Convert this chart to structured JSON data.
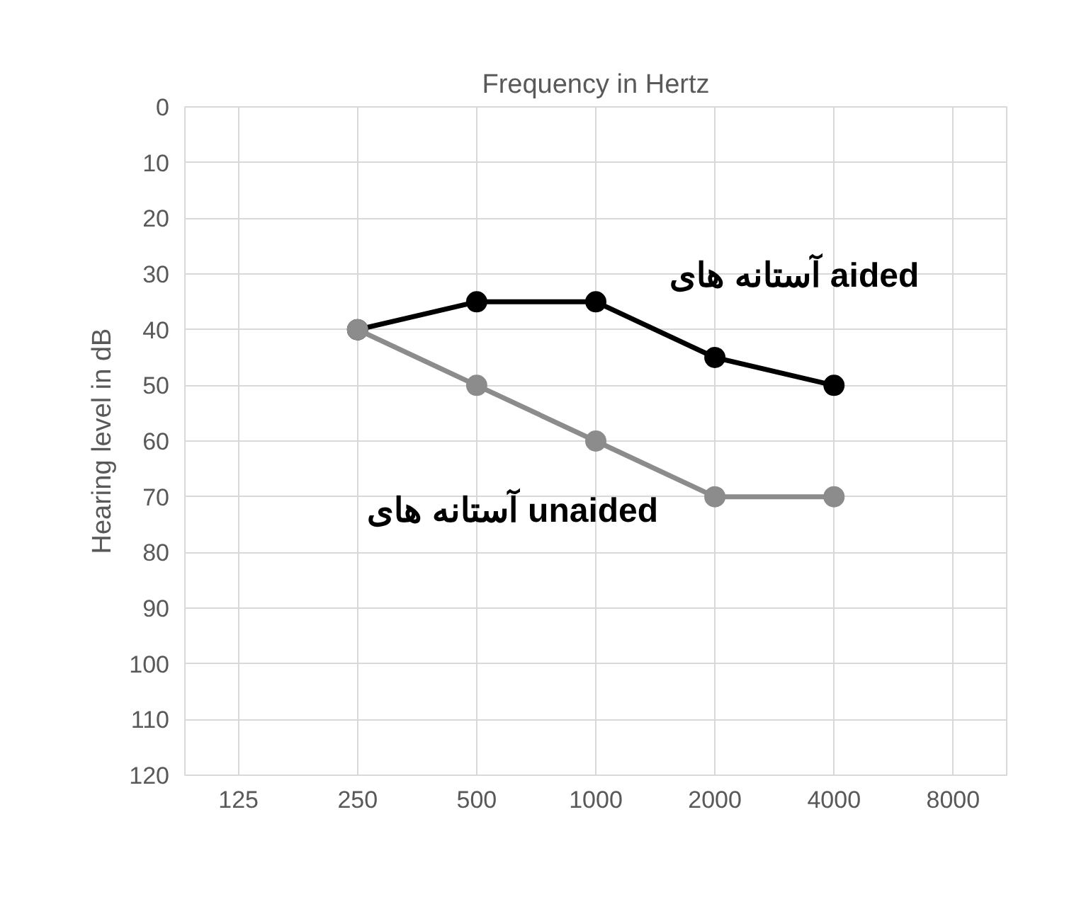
{
  "chart_data": {
    "type": "line",
    "xlabel": "Frequency in Hertz",
    "ylabel": "Hearing level in dB",
    "categories": [
      "125",
      "250",
      "500",
      "1000",
      "2000",
      "4000",
      "8000"
    ],
    "ylim": [
      120,
      0
    ],
    "yticks": [
      0,
      10,
      20,
      30,
      40,
      50,
      60,
      70,
      80,
      90,
      100,
      110,
      120
    ],
    "grid": true,
    "marker": "circle",
    "line_style": "solid",
    "series": [
      {
        "name": "آستانه های aided",
        "color": "#000000",
        "values": [
          null,
          40,
          35,
          35,
          45,
          50,
          null
        ]
      },
      {
        "name": "آستانه های unaided",
        "color": "#8c8c8c",
        "values": [
          null,
          40,
          50,
          60,
          70,
          70,
          null
        ]
      }
    ]
  }
}
